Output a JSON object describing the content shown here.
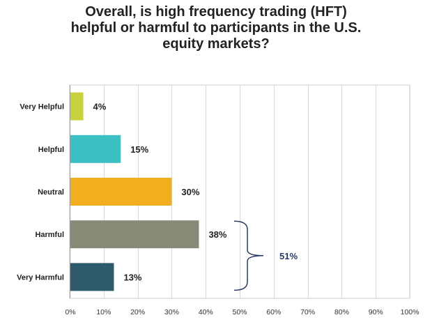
{
  "chart_data": {
    "type": "bar",
    "orientation": "horizontal",
    "title_lines": [
      "Overall, is high frequency trading (HFT)",
      "helpful or harmful to participants in the U.S.",
      "equity markets?"
    ],
    "categories": [
      "Very Helpful",
      "Helpful",
      "Neutral",
      "Harmful",
      "Very Harmful"
    ],
    "values": [
      4,
      15,
      30,
      38,
      13
    ],
    "value_labels": [
      "4%",
      "15%",
      "30%",
      "38%",
      "13%"
    ],
    "colors": [
      "#c8d23a",
      "#3dc0c4",
      "#f3ae1f",
      "#878a77",
      "#2e5a6b"
    ],
    "xlim": [
      0,
      100
    ],
    "x_ticks": [
      0,
      10,
      20,
      30,
      40,
      50,
      60,
      70,
      80,
      90,
      100
    ],
    "x_tick_labels": [
      "0%",
      "10%",
      "20%",
      "30%",
      "40%",
      "50%",
      "60%",
      "70%",
      "80%",
      "90%",
      "100%"
    ],
    "grid": true,
    "annotation": {
      "type": "bracket",
      "spans": [
        "Harmful",
        "Very Harmful"
      ],
      "label": "51%",
      "color": "#2a3a66"
    }
  }
}
